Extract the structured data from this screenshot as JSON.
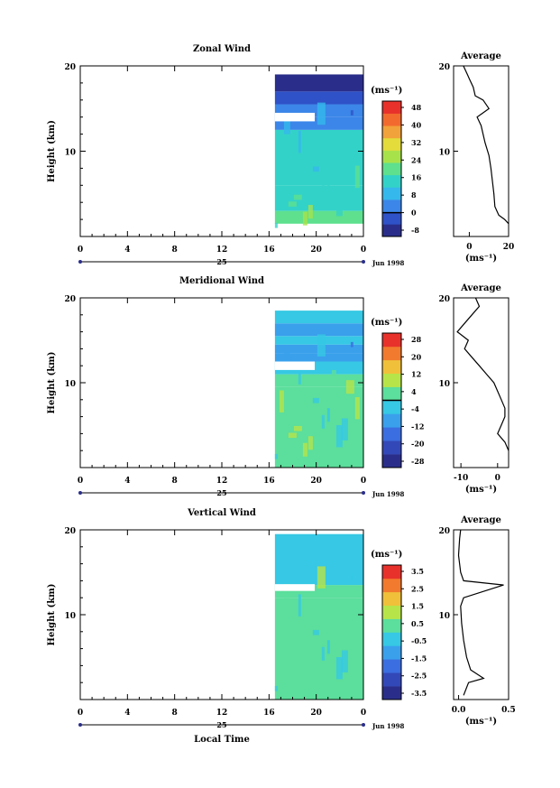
{
  "figure": {
    "x_axis_title": "Local Time",
    "date_label": "Jun 1998"
  },
  "chart_data": [
    {
      "type": "heatmap",
      "title": "Zonal Wind",
      "ylabel": "Height (km)",
      "xlabel": "Local Time",
      "x_ticks": [
        "0",
        "4",
        "8",
        "12",
        "16",
        "20",
        "0"
      ],
      "x_day_label": "25",
      "y_ticks": [
        "10",
        "20"
      ],
      "ylim": [
        0,
        20
      ],
      "data_start_hour": 16.5,
      "colorbar": {
        "unit_label": "(ms⁻¹)",
        "tick_labels": [
          "48",
          "40",
          "32",
          "24",
          "16",
          "8",
          "0",
          "-8"
        ],
        "values": [
          48,
          40,
          32,
          24,
          16,
          8,
          0,
          -8
        ],
        "zero_contour": true
      },
      "layers": [
        {
          "z_range": [
            1.5,
            3
          ],
          "value": 20
        },
        {
          "z_range": [
            3,
            6
          ],
          "value": 17
        },
        {
          "z_range": [
            6,
            12.5
          ],
          "value": 13
        },
        {
          "z_range": [
            12.5,
            14
          ],
          "value": 6
        },
        {
          "z_range": [
            14,
            15.5
          ],
          "value": 3
        },
        {
          "z_range": [
            15.5,
            17
          ],
          "value": 1
        },
        {
          "z_range": [
            17,
            19
          ],
          "value": -4
        }
      ],
      "average_profile": {
        "title": "Average",
        "xlabel": "(ms⁻¹)",
        "x_ticks": [
          "0",
          "20"
        ],
        "xlim": [
          -8,
          20
        ],
        "y_ticks": [
          "10",
          "20"
        ],
        "ylim": [
          0,
          20
        ],
        "points": [
          [
            20,
            1.5
          ],
          [
            18,
            2
          ],
          [
            15,
            2.5
          ],
          [
            13,
            3.5
          ],
          [
            12.5,
            5
          ],
          [
            12,
            6
          ],
          [
            11,
            8
          ],
          [
            10,
            9.5
          ],
          [
            8,
            11
          ],
          [
            6,
            13
          ],
          [
            4,
            14
          ],
          [
            10,
            15
          ],
          [
            7,
            16
          ],
          [
            3,
            16.5
          ],
          [
            2,
            17.5
          ],
          [
            0,
            18.5
          ],
          [
            -1,
            19
          ],
          [
            -2,
            19.5
          ],
          [
            -3,
            20
          ]
        ]
      }
    },
    {
      "type": "heatmap",
      "title": "Meridional Wind",
      "ylabel": "Height (km)",
      "xlabel": "Local Time",
      "x_ticks": [
        "0",
        "4",
        "8",
        "12",
        "16",
        "20",
        "0"
      ],
      "x_day_label": "25",
      "y_ticks": [
        "10",
        "20"
      ],
      "ylim": [
        0,
        20
      ],
      "data_start_hour": 16.5,
      "colorbar": {
        "unit_label": "(ms⁻¹)",
        "tick_labels": [
          "28",
          "20",
          "12",
          "4",
          "-4",
          "-12",
          "-20",
          "-28"
        ],
        "values": [
          28,
          20,
          12,
          4,
          -4,
          -12,
          -20,
          -28
        ],
        "zero_contour": true
      },
      "layers": [
        {
          "z_range": [
            0,
            9.5
          ],
          "value": 2
        },
        {
          "z_range": [
            9.5,
            11
          ],
          "value": 0
        },
        {
          "z_range": [
            11,
            12.5
          ],
          "value": -3
        },
        {
          "z_range": [
            12.5,
            13.5
          ],
          "value": -6
        },
        {
          "z_range": [
            13.5,
            14.5
          ],
          "value": -10
        },
        {
          "z_range": [
            14.5,
            15.5
          ],
          "value": -5
        },
        {
          "z_range": [
            15.5,
            17
          ],
          "value": -8
        },
        {
          "z_range": [
            17,
            18.5
          ],
          "value": -4
        }
      ],
      "average_profile": {
        "title": "Average",
        "xlabel": "(ms⁻¹)",
        "x_ticks": [
          "-10",
          "0"
        ],
        "xlim": [
          -12,
          3
        ],
        "y_ticks": [
          "10",
          "20"
        ],
        "ylim": [
          0,
          20
        ],
        "points": [
          [
            3,
            2
          ],
          [
            2,
            3
          ],
          [
            0,
            4
          ],
          [
            1,
            5
          ],
          [
            2,
            6
          ],
          [
            2,
            7
          ],
          [
            1,
            8
          ],
          [
            0,
            9
          ],
          [
            -1,
            10
          ],
          [
            -3,
            11
          ],
          [
            -5,
            12
          ],
          [
            -7,
            13
          ],
          [
            -9,
            14
          ],
          [
            -8,
            15
          ],
          [
            -11,
            16
          ],
          [
            -9,
            17
          ],
          [
            -7,
            18
          ],
          [
            -5,
            19
          ],
          [
            -6,
            20
          ]
        ]
      }
    },
    {
      "type": "heatmap",
      "title": "Vertical Wind",
      "ylabel": "Height (km)",
      "xlabel": "Local Time",
      "x_ticks": [
        "0",
        "4",
        "8",
        "12",
        "16",
        "20",
        "0"
      ],
      "x_day_label": "25",
      "y_ticks": [
        "10",
        "20"
      ],
      "ylim": [
        0,
        20
      ],
      "data_start_hour": 16.5,
      "colorbar": {
        "unit_label": "(ms⁻¹)",
        "tick_labels": [
          "3.5",
          "2.5",
          "1.5",
          "0.5",
          "-0.5",
          "-1.5",
          "-2.5",
          "-3.5"
        ],
        "values": [
          3.5,
          2.5,
          1.5,
          0.5,
          -0.5,
          -1.5,
          -2.5,
          -3.5
        ],
        "zero_contour": false
      },
      "layers": [
        {
          "z_range": [
            0,
            12
          ],
          "value": 0.1
        },
        {
          "z_range": [
            12,
            13.5
          ],
          "value": 0.6
        },
        {
          "z_range": [
            13.5,
            19.5
          ],
          "value": -0.2
        }
      ],
      "average_profile": {
        "title": "Average",
        "xlabel": "(ms⁻¹)",
        "x_ticks": [
          "0.0",
          "0.5"
        ],
        "xlim": [
          -0.05,
          0.5
        ],
        "y_ticks": [
          "10",
          "20"
        ],
        "ylim": [
          0,
          20
        ],
        "points": [
          [
            0.05,
            0.5
          ],
          [
            0.1,
            2
          ],
          [
            0.25,
            2.5
          ],
          [
            0.12,
            3.5
          ],
          [
            0.08,
            5
          ],
          [
            0.05,
            7
          ],
          [
            0.03,
            9
          ],
          [
            0.02,
            11
          ],
          [
            0.05,
            12
          ],
          [
            0.45,
            13.5
          ],
          [
            0.05,
            14
          ],
          [
            0.02,
            15
          ],
          [
            0.0,
            17
          ],
          [
            0.01,
            19
          ],
          [
            0.02,
            20
          ]
        ]
      }
    }
  ]
}
